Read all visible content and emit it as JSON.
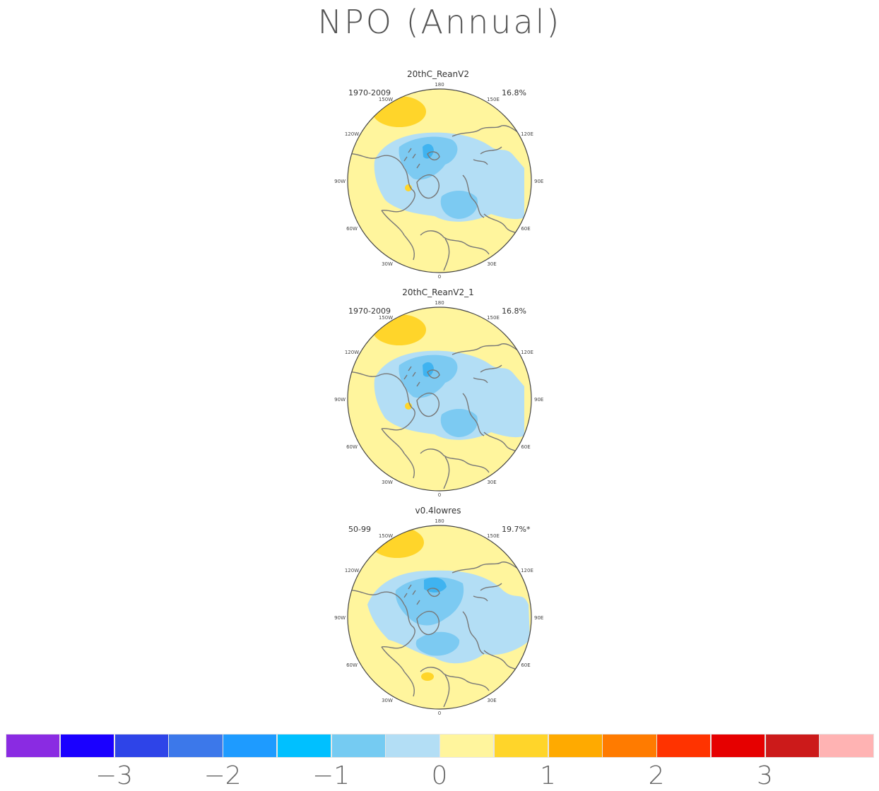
{
  "title": "NPO (Annual)",
  "colors": {
    "yellow": "#fff59d",
    "gold": "#ffd52a",
    "lightblue": "#b3def5",
    "skyblue": "#7ccaf2",
    "blue": "#3fb3f0",
    "coast": "#777777"
  },
  "panels": [
    {
      "title": "20thC_ReanV2",
      "period": "1970-2009",
      "variance": "16.8%"
    },
    {
      "title": "20thC_ReanV2_1",
      "period": "1970-2009",
      "variance": "16.8%"
    },
    {
      "title": "v0.4lowres",
      "period": "50-99",
      "variance": "19.7%*"
    }
  ],
  "lon_labels": {
    "top": "180",
    "bottom": "0",
    "left": "90W",
    "right": "90E",
    "w150": "150W",
    "w120": "120W",
    "w60": "60W",
    "w30": "30W",
    "e150": "150E",
    "e120": "120E",
    "e60": "60E",
    "e30": "30E"
  },
  "colorbar": {
    "colors": [
      "#8a2be2",
      "#1a00ff",
      "#2e44e8",
      "#3c78ea",
      "#1e9bff",
      "#00c0ff",
      "#75cbf2",
      "#b3def5",
      "#fff59d",
      "#ffd52a",
      "#ffaa00",
      "#ff7b00",
      "#ff3300",
      "#e60000",
      "#cc1a1a",
      "#ffb3b3"
    ],
    "ticks": [
      "−3",
      "−2",
      "−1",
      "0",
      "1",
      "2",
      "3"
    ]
  }
}
